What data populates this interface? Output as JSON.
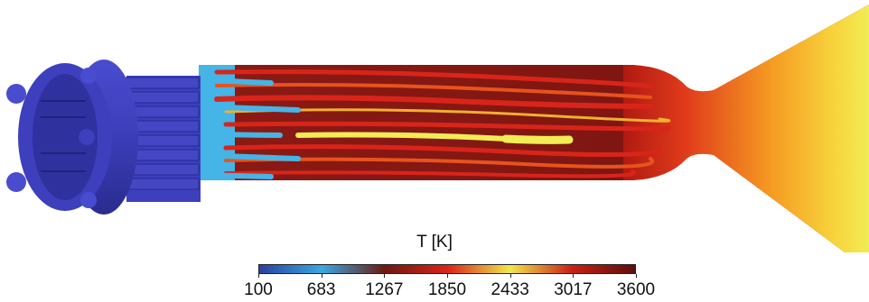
{
  "colorbar": {
    "title": "T [K]",
    "ticks": [
      "100",
      "683",
      "1267",
      "1850",
      "2433",
      "3017",
      "3600"
    ],
    "range": [
      100,
      3600
    ],
    "colors": [
      "#2b3f9e",
      "#3aa8e0",
      "#6b1a12",
      "#d9241a",
      "#f0e84a",
      "#c91f16",
      "#5a0f0c"
    ]
  },
  "palette": {
    "injector_blue": "#3d3fbd",
    "flame_dark_red": "#7a1410",
    "flame_red": "#c41d16",
    "hot_yellow": "#f2ec55",
    "cold_cyan": "#45b4e6"
  }
}
